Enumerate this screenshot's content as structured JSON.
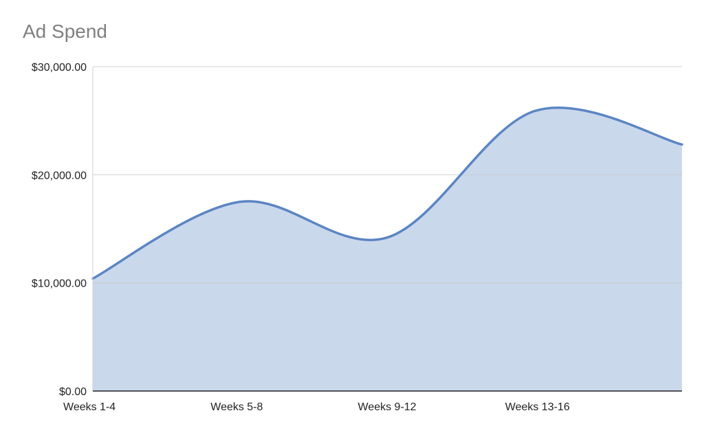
{
  "chart_data": {
    "type": "area",
    "title": "Ad Spend",
    "xlabel": "",
    "ylabel": "",
    "categories": [
      "Weeks 1-4",
      "Weeks 5-8",
      "Weeks 9-12",
      "Weeks 13-16",
      ""
    ],
    "series": [
      {
        "values": [
          10400,
          17500,
          14200,
          25900,
          22800
        ]
      }
    ],
    "ylim": [
      0,
      30000
    ],
    "yticks": [
      0,
      10000,
      20000,
      30000
    ],
    "ytick_labels": [
      "$0.00",
      "$10,000.00",
      "$20,000.00",
      "$30,000.00"
    ],
    "grid": true,
    "smooth": true,
    "legend": "none",
    "colors": {
      "line": "#5b85c3",
      "fill": "#cad8ec",
      "grid": "#c8c8c8",
      "axis": "#222222"
    }
  }
}
